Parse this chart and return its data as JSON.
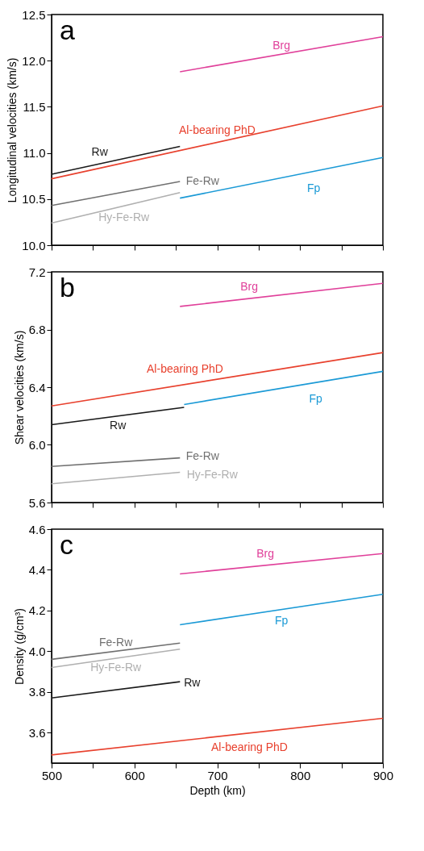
{
  "chart_data": [
    {
      "type": "line",
      "ylabel": "Longitudinal velocities (km/s)",
      "annotations": [
        "a"
      ],
      "xlim": [
        500,
        900
      ],
      "xticks": [
        500,
        {
          "value": 550,
          "label": null
        },
        600,
        {
          "value": 650,
          "label": null
        },
        700,
        {
          "value": 750,
          "label": null
        },
        800,
        {
          "value": 850,
          "label": null
        },
        900
      ],
      "ylim": [
        10.0,
        12.5
      ],
      "yticks": [
        {
          "value": 10.0,
          "label": "10.0"
        },
        10.5,
        {
          "value": 11.0,
          "label": "11.0"
        },
        11.5,
        {
          "value": 12.0,
          "label": "12.0"
        },
        12.5
      ],
      "grid": false,
      "tick_labels": "y",
      "series": [
        {
          "name": "Brg",
          "color": "#e0409a",
          "x": [
            655,
            900
          ],
          "values": [
            11.88,
            12.26
          ]
        },
        {
          "name": "Al-bearing PhD",
          "color": "#e8412e",
          "x": [
            500,
            900
          ],
          "values": [
            10.72,
            11.51
          ]
        },
        {
          "name": "Rw",
          "color": "#1a1a1a",
          "x": [
            500,
            655
          ],
          "values": [
            10.77,
            11.07
          ]
        },
        {
          "name": "Fe-Rw",
          "color": "#707070",
          "x": [
            500,
            655
          ],
          "values": [
            10.43,
            10.69
          ]
        },
        {
          "name": "Hy-Fe-Rw",
          "color": "#b0b0b0",
          "x": [
            500,
            655
          ],
          "values": [
            10.24,
            10.57
          ]
        },
        {
          "name": "Fp",
          "color": "#1b9ad6",
          "x": [
            655,
            900
          ],
          "values": [
            10.51,
            10.95
          ]
        }
      ]
    },
    {
      "type": "line",
      "ylabel": "Shear velocities (km/s)",
      "annotations": [
        "b"
      ],
      "xlim": [
        500,
        900
      ],
      "xticks": [
        500,
        {
          "value": 550,
          "label": null
        },
        600,
        {
          "value": 650,
          "label": null
        },
        700,
        {
          "value": 750,
          "label": null
        },
        800,
        {
          "value": 850,
          "label": null
        },
        900
      ],
      "ylim": [
        5.6,
        7.2
      ],
      "yticks": [
        5.6,
        {
          "value": 6.0,
          "label": "6.0"
        },
        6.4,
        6.8,
        7.2
      ],
      "grid": false,
      "tick_labels": "y",
      "series": [
        {
          "name": "Brg",
          "color": "#e0409a",
          "x": [
            655,
            900
          ],
          "values": [
            6.96,
            7.12
          ]
        },
        {
          "name": "Al-bearing PhD",
          "color": "#e8412e",
          "x": [
            500,
            900
          ],
          "values": [
            6.27,
            6.64
          ]
        },
        {
          "name": "Rw",
          "color": "#1a1a1a",
          "x": [
            500,
            660
          ],
          "values": [
            6.14,
            6.26
          ]
        },
        {
          "name": "Fe-Rw",
          "color": "#707070",
          "x": [
            500,
            655
          ],
          "values": [
            5.85,
            5.91
          ]
        },
        {
          "name": "Hy-Fe-Rw",
          "color": "#b0b0b0",
          "x": [
            500,
            655
          ],
          "values": [
            5.73,
            5.81
          ]
        },
        {
          "name": "Fp",
          "color": "#1b9ad6",
          "x": [
            660,
            900
          ],
          "values": [
            6.28,
            6.51
          ]
        }
      ]
    },
    {
      "type": "line",
      "xlabel": "Depth (km)",
      "ylabel": "Density (g/cm³)",
      "annotations": [
        "c"
      ],
      "xlim": [
        500,
        900
      ],
      "xticks": [
        500,
        {
          "value": 550,
          "label": null
        },
        600,
        {
          "value": 650,
          "label": null
        },
        700,
        {
          "value": 750,
          "label": null
        },
        800,
        {
          "value": 850,
          "label": null
        },
        900
      ],
      "ylim": [
        3.45,
        4.6
      ],
      "yticks": [
        3.6,
        3.8,
        {
          "value": 4.0,
          "label": "4.0"
        },
        4.2,
        4.4,
        4.6
      ],
      "grid": false,
      "series": [
        {
          "name": "Brg",
          "color": "#e0409a",
          "x": [
            655,
            900
          ],
          "values": [
            4.38,
            4.48
          ]
        },
        {
          "name": "Al-bearing PhD",
          "color": "#e8412e",
          "x": [
            500,
            900
          ],
          "values": [
            3.49,
            3.67
          ]
        },
        {
          "name": "Rw",
          "color": "#1a1a1a",
          "x": [
            500,
            655
          ],
          "values": [
            3.77,
            3.85
          ]
        },
        {
          "name": "Fe-Rw",
          "color": "#707070",
          "x": [
            500,
            655
          ],
          "values": [
            3.96,
            4.04
          ]
        },
        {
          "name": "Hy-Fe-Rw",
          "color": "#b0b0b0",
          "x": [
            500,
            655
          ],
          "values": [
            3.92,
            4.01
          ]
        },
        {
          "name": "Fp",
          "color": "#1b9ad6",
          "x": [
            655,
            900
          ],
          "values": [
            4.13,
            4.28
          ]
        }
      ]
    }
  ]
}
